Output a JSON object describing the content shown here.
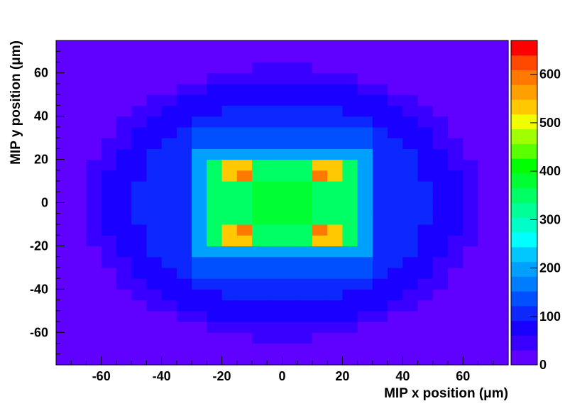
{
  "chart_data": {
    "type": "heatmap",
    "title": "",
    "xlabel": "MIP x position (μm)",
    "ylabel": "MIP y position (μm)",
    "xlim": [
      -75,
      75
    ],
    "ylim": [
      -75,
      75
    ],
    "x_ticks": [
      -60,
      -40,
      -20,
      0,
      20,
      40,
      60
    ],
    "y_ticks": [
      -60,
      -40,
      -20,
      0,
      20,
      40,
      60
    ],
    "colorbar": {
      "range": [
        0,
        670
      ],
      "ticks": [
        0,
        100,
        200,
        300,
        400,
        500,
        600
      ],
      "levels": 20,
      "colors": [
        "#6000ff",
        "#3a00ff",
        "#1a00ff",
        "#0c28ff",
        "#0050ff",
        "#007cff",
        "#00a0ff",
        "#00c8ff",
        "#00ffff",
        "#00ffc8",
        "#00ff96",
        "#00ff64",
        "#00ff32",
        "#00ff00",
        "#5aff00",
        "#a0ff00",
        "#f0ff00",
        "#ffc800",
        "#ffa000",
        "#ff7800",
        "#ff4800",
        "#ff0000"
      ]
    },
    "grid": false,
    "bin_size_um": 5,
    "cells": [
      {
        "x": -2.5,
        "y": 2.5,
        "v": 380
      },
      {
        "x": 2.5,
        "y": 2.5,
        "v": 380
      },
      {
        "x": -2.5,
        "y": -2.5,
        "v": 380
      },
      {
        "x": 2.5,
        "y": -2.5,
        "v": 380
      },
      {
        "x": -7.5,
        "y": 2.5,
        "v": 380
      },
      {
        "x": 7.5,
        "y": 2.5,
        "v": 380
      },
      {
        "x": -7.5,
        "y": -2.5,
        "v": 380
      },
      {
        "x": 7.5,
        "y": -2.5,
        "v": 380
      },
      {
        "x": -2.5,
        "y": 7.5,
        "v": 380
      },
      {
        "x": 2.5,
        "y": 7.5,
        "v": 380
      },
      {
        "x": -2.5,
        "y": -7.5,
        "v": 380
      },
      {
        "x": 2.5,
        "y": -7.5,
        "v": 380
      },
      {
        "x": -7.5,
        "y": 7.5,
        "v": 380
      },
      {
        "x": 7.5,
        "y": 7.5,
        "v": 380
      },
      {
        "x": -7.5,
        "y": -7.5,
        "v": 380
      },
      {
        "x": 7.5,
        "y": -7.5,
        "v": 380
      },
      {
        "x": -12.5,
        "y": 17.5,
        "v": 520
      },
      {
        "x": 12.5,
        "y": 17.5,
        "v": 520
      },
      {
        "x": -12.5,
        "y": -17.5,
        "v": 520
      },
      {
        "x": 12.5,
        "y": -17.5,
        "v": 520
      },
      {
        "x": -17.5,
        "y": 12.5,
        "v": 520
      },
      {
        "x": 17.5,
        "y": 12.5,
        "v": 520
      },
      {
        "x": -17.5,
        "y": -12.5,
        "v": 520
      },
      {
        "x": 17.5,
        "y": -12.5,
        "v": 520
      },
      {
        "x": -12.5,
        "y": 12.5,
        "v": 600
      },
      {
        "x": 12.5,
        "y": 12.5,
        "v": 600
      },
      {
        "x": -12.5,
        "y": -12.5,
        "v": 600
      },
      {
        "x": 12.5,
        "y": -12.5,
        "v": 600
      },
      {
        "x": -17.5,
        "y": 17.5,
        "v": 520
      },
      {
        "x": 17.5,
        "y": 17.5,
        "v": 520
      },
      {
        "x": -17.5,
        "y": -17.5,
        "v": 520
      },
      {
        "x": 17.5,
        "y": -17.5,
        "v": 520
      }
    ]
  }
}
